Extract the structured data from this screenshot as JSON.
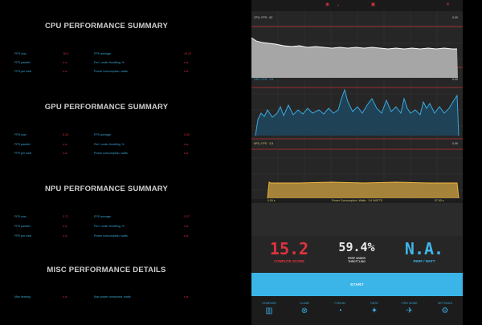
{
  "sections": [
    {
      "title": "CPU PERFORMANCE SUMMARY",
      "rows": [
        [
          {
            "label": "FPS max",
            "value": "16.5"
          },
          {
            "label": "FPS average",
            "value": "15.22"
          }
        ],
        [
          {
            "label": "FPS parallel",
            "value": "n.a."
          },
          {
            "label": "Perf. under throttling, %",
            "value": "n.a."
          }
        ],
        [
          {
            "label": "FPS per watt",
            "value": "n.a."
          },
          {
            "label": "Power consumption, watts",
            "value": "n.a."
          }
        ]
      ]
    },
    {
      "title": "GPU PERFORMANCE SUMMARY",
      "rows": [
        [
          {
            "label": "FPS max",
            "value": "5.25"
          },
          {
            "label": "FPS average",
            "value": "3.25"
          }
        ],
        [
          {
            "label": "FPS parallel",
            "value": "n.a."
          },
          {
            "label": "Perf. under throttling, %",
            "value": "n.a."
          }
        ],
        [
          {
            "label": "FPS per watt",
            "value": "n.a."
          },
          {
            "label": "Power consumption, watts",
            "value": "n.a."
          }
        ]
      ]
    },
    {
      "title": "NPU PERFORMANCE SUMMARY",
      "rows": [
        [
          {
            "label": "FPS max",
            "value": "3.71"
          },
          {
            "label": "FPS average",
            "value": "3.37"
          }
        ],
        [
          {
            "label": "FPS parallel",
            "value": "n.a."
          },
          {
            "label": "Perf. under throttling, %",
            "value": "n.a."
          }
        ],
        [
          {
            "label": "FPS per watt",
            "value": "n.a."
          },
          {
            "label": "Power consumption, watts",
            "value": "n.a."
          }
        ]
      ]
    },
    {
      "title": "MISC PERFORMANCE DETAILS",
      "rows": [
        [
          {
            "label": "Max heating",
            "value": "n.a."
          },
          {
            "label": "Max power consumed, watts",
            "value": "n.a."
          }
        ]
      ]
    }
  ],
  "charts": {
    "cpu": {
      "left_label": "CPU, FPS · 63",
      "right_label": "0.99"
    },
    "gpu": {
      "left_label": "GPU, FPS · 2.6",
      "right_label": "0.99"
    },
    "npu": {
      "left_label": "NPU, FPS · 3.8",
      "right_label": "0.99",
      "bottom_left": "0.00 s",
      "bottom_mid": "Power Consumption, Watts · 3.6 WATTS",
      "bottom_right": "97.00 s"
    }
  },
  "scores": {
    "compute": {
      "value": "15.2",
      "label": "COMPUTE SCORE"
    },
    "throttling": {
      "value": "59.4%",
      "label_line1": "PERF UNDER",
      "label_line2": "THROTTLING"
    },
    "perf_watt": {
      "value": "N.A.",
      "label": "PERF / WATT"
    }
  },
  "start_label": "START",
  "nav": [
    {
      "label": "COMPARE",
      "icon": "compare-icon"
    },
    {
      "label": "CLEAR",
      "icon": "clear-icon"
    },
    {
      "label": "FORUM",
      "icon": "forum-icon"
    },
    {
      "label": "RATE",
      "icon": "rate-icon"
    },
    {
      "label": "PRO MODE",
      "icon": "pro-mode-icon"
    },
    {
      "label": "SETTINGS",
      "icon": "settings-icon"
    }
  ],
  "colors": {
    "accent_blue": "#3aa6d8",
    "accent_red": "#d2323c",
    "start_bg": "#3bb5e8",
    "cpu_area": "#a6a6a6",
    "gpu_line": "#39a9e0",
    "npu_area": "#d9a535"
  }
}
